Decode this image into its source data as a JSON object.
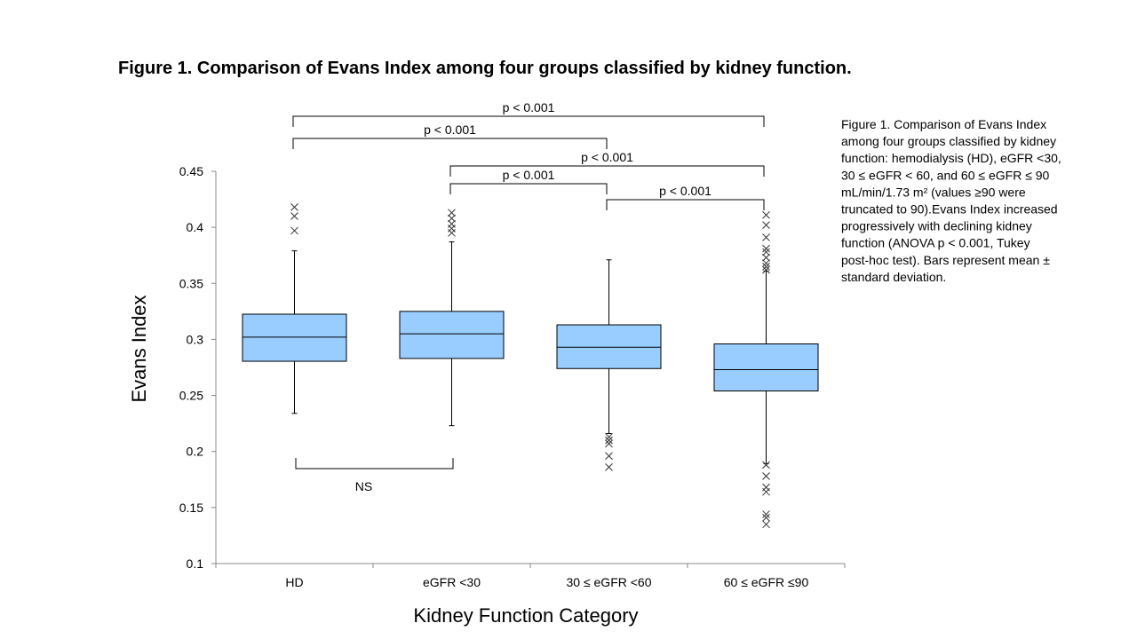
{
  "chart_data": {
    "type": "box",
    "title": "Figure 1. Comparison of Evans Index among four groups classified by kidney function.",
    "y_label": "Evans Index",
    "x_label": "Kidney Function Category",
    "categories": [
      "HD",
      "eGFR <30",
      "30 ≤ eGFR <60",
      "60 ≤ eGFR ≤90"
    ],
    "color": "#99ccff",
    "ylim": [
      0.1,
      0.45
    ],
    "yticks": [
      0.1,
      0.15,
      0.2,
      0.25,
      0.3,
      0.35,
      0.4,
      0.45
    ],
    "boxes": [
      {
        "whisker_low": 0.234,
        "q1": 0.2805,
        "median": 0.302,
        "q3": 0.3225,
        "whisker_high": 0.379,
        "outliers": [
          0.418,
          0.41,
          0.397
        ]
      },
      {
        "whisker_low": 0.223,
        "q1": 0.283,
        "median": 0.305,
        "q3": 0.325,
        "whisker_high": 0.387,
        "outliers": [
          0.413,
          0.408,
          0.403,
          0.399,
          0.395
        ]
      },
      {
        "whisker_low": 0.216,
        "q1": 0.274,
        "median": 0.293,
        "q3": 0.313,
        "whisker_high": 0.371,
        "outliers": [
          0.213,
          0.21,
          0.207,
          0.196,
          0.186
        ]
      },
      {
        "whisker_low": 0.189,
        "q1": 0.254,
        "median": 0.273,
        "q3": 0.296,
        "whisker_high": 0.361,
        "outliers": [
          0.411,
          0.402,
          0.391,
          0.381,
          0.378,
          0.373,
          0.368,
          0.365,
          0.362,
          0.188,
          0.178,
          0.168,
          0.164,
          0.144,
          0.141,
          0.135
        ]
      }
    ],
    "annotations": [
      "p < 0.001",
      "p < 0.001",
      "p < 0.001",
      "p < 0.001",
      "p < 0.001",
      "NS"
    ],
    "caption": [
      "Figure 1. Comparison of Evans Index",
      "among four groups classified by kidney",
      "function: hemodialysis (HD), eGFR <30,",
      "30 ≤ eGFR < 60, and 60 ≤ eGFR ≤ 90",
      "mL/min/1.73 m² (values ≥90 were",
      "truncated to 90).Evans Index increased",
      "progressively with declining kidney",
      "function (ANOVA p < 0.001, Tukey",
      "post-hoc test). Bars represent mean ±",
      "standard deviation."
    ]
  }
}
